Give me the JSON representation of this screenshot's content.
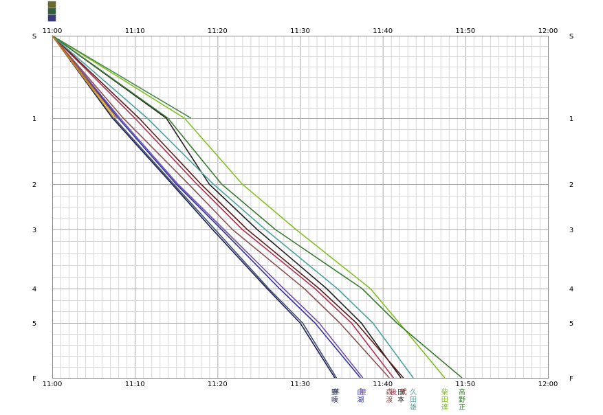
{
  "chart_data": {
    "type": "line",
    "title": "",
    "xlabel": "",
    "ylabel": "",
    "x_ticks": [
      "11:00",
      "11:10",
      "11:20",
      "11:30",
      "11:40",
      "11:50",
      "12:00"
    ],
    "x_unit": "minutes after 11:00",
    "xlim": [
      0,
      60
    ],
    "x_minor_step": 1,
    "y_ticks": [
      {
        "label": "S",
        "value": 0
      },
      {
        "label": "1",
        "value": 1
      },
      {
        "label": "2",
        "value": 2
      },
      {
        "label": "3",
        "value": 3
      },
      {
        "label": "4",
        "value": 4
      },
      {
        "label": "5",
        "value": 5
      },
      {
        "label": "F",
        "value": 6
      }
    ],
    "top_marker_colors": [
      "#6a6a2a",
      "#2f5f3f",
      "#3a3a7a"
    ],
    "series": [
      {
        "label": "野\n崚",
        "color": "#1a1a52",
        "points": [
          [
            0,
            0
          ],
          [
            7.3,
            1
          ],
          [
            14.5,
            2
          ],
          [
            19.4,
            3
          ],
          [
            26,
            4
          ],
          [
            30,
            5
          ],
          [
            34.2,
            6
          ]
        ],
        "label_x": 34.2
      },
      {
        "label": "井",
        "color": "#3a4a6a",
        "points": [
          [
            0,
            0
          ],
          [
            7.5,
            1
          ],
          [
            14.7,
            2
          ],
          [
            19.7,
            3
          ],
          [
            26.2,
            4
          ],
          [
            30.3,
            5
          ],
          [
            34.4,
            6
          ]
        ],
        "label_x": 34.4
      },
      {
        "label": "由\n湖",
        "color": "#3030a0",
        "points": [
          [
            0,
            0
          ],
          [
            8,
            1
          ],
          [
            15,
            2
          ],
          [
            20.5,
            3
          ],
          [
            27.5,
            4
          ],
          [
            31.8,
            5
          ],
          [
            37.3,
            6
          ]
        ],
        "label_x": 37.3
      },
      {
        "label": "陸",
        "color": "#7050b0",
        "points": [
          [
            0,
            0
          ],
          [
            8.2,
            1
          ],
          [
            15.2,
            2
          ],
          [
            20.8,
            3
          ],
          [
            28,
            4
          ],
          [
            32.3,
            5
          ],
          [
            37.6,
            6
          ]
        ],
        "label_x": 37.6
      },
      {
        "label": "森\n渡",
        "color": "#8a5050",
        "points": [
          [
            0,
            0
          ],
          [
            8.6,
            1
          ],
          [
            16.5,
            2
          ],
          [
            21.8,
            3
          ],
          [
            30.5,
            4
          ],
          [
            34.8,
            5
          ],
          [
            40.8,
            6
          ]
        ],
        "label_x": 40.8
      },
      {
        "label": "後",
        "color": "#b03050",
        "points": [
          [
            0,
            0
          ],
          [
            10,
            1
          ],
          [
            17.5,
            2
          ],
          [
            23,
            3
          ],
          [
            31.8,
            4
          ],
          [
            36.2,
            5
          ],
          [
            41.3,
            6
          ]
        ],
        "label_x": 41.3
      },
      {
        "label": "田\n本",
        "color": "#202020",
        "points": [
          [
            0,
            0
          ],
          [
            13.8,
            1
          ],
          [
            19,
            2
          ],
          [
            24.8,
            3
          ],
          [
            33.2,
            4
          ],
          [
            37.4,
            5
          ],
          [
            42.2,
            6
          ]
        ],
        "label_x": 42.2
      },
      {
        "label": "武",
        "color": "#601818",
        "points": [
          [
            0,
            0
          ],
          [
            10.5,
            1
          ],
          [
            18,
            2
          ],
          [
            23.6,
            3
          ],
          [
            32.3,
            4
          ],
          [
            36.8,
            5
          ],
          [
            42.5,
            6
          ]
        ],
        "label_x": 42.5
      },
      {
        "label": "久\n田\n雄",
        "color": "#4aa0a0",
        "points": [
          [
            0,
            0
          ],
          [
            11.5,
            1
          ],
          [
            19.5,
            2
          ],
          [
            25.8,
            3
          ],
          [
            34.5,
            4
          ],
          [
            38.8,
            5
          ],
          [
            43.7,
            6
          ]
        ],
        "label_x": 43.7
      },
      {
        "label": "柴\n田\n達",
        "color": "#80c020",
        "points": [
          [
            0,
            0
          ],
          [
            16,
            1
          ],
          [
            23,
            2
          ],
          [
            29.5,
            3
          ],
          [
            38.5,
            4
          ],
          [
            42,
            5
          ],
          [
            47.5,
            6
          ]
        ],
        "label_x": 47.5
      },
      {
        "label": "高\n野\n正",
        "color": "#3a7a30",
        "points": [
          [
            0,
            0
          ],
          [
            14,
            1
          ],
          [
            20.5,
            2
          ],
          [
            27,
            3
          ],
          [
            37.5,
            4
          ],
          [
            41.7,
            5
          ],
          [
            49.6,
            6
          ]
        ],
        "label_x": 49.6
      },
      {
        "label": "",
        "color": "#4a8a4a",
        "points": [
          [
            0,
            0
          ],
          [
            16.8,
            1
          ]
        ]
      },
      {
        "label": "",
        "color": "#c8a020",
        "points": [
          [
            0,
            0
          ],
          [
            7.5,
            1
          ]
        ]
      },
      {
        "label": "",
        "color": "#c87020",
        "points": [
          [
            0,
            0
          ],
          [
            7.8,
            1
          ]
        ]
      }
    ]
  }
}
